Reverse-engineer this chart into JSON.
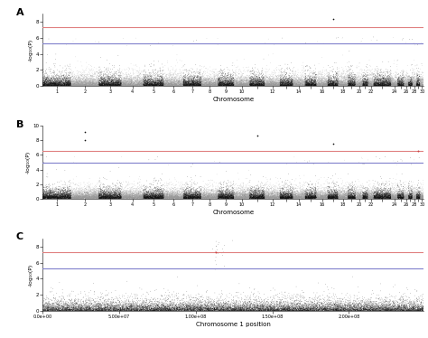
{
  "panel_labels": [
    "A",
    "B",
    "C"
  ],
  "n_chromosomes": 30,
  "chrom_colors": [
    "#111111",
    "#999999"
  ],
  "red_line_color": "#e08080",
  "blue_line_color": "#8080cc",
  "panel_A": {
    "ylim": [
      0,
      9
    ],
    "yticks": [
      0,
      2,
      4,
      6,
      8
    ],
    "ylabel": "-log₁₀(P)",
    "xlabel": "Chromosome",
    "red_line": 7.3,
    "blue_line": 5.3,
    "n_snps": 30000,
    "seed": 10
  },
  "panel_B": {
    "ylim": [
      0,
      10
    ],
    "yticks": [
      0,
      2,
      4,
      6,
      8,
      10
    ],
    "ylabel": "-log₁₀(P)",
    "xlabel": "Chromosome",
    "red_line": 6.5,
    "blue_line": 5.0,
    "n_snps": 30000,
    "seed": 20
  },
  "panel_C": {
    "ylim": [
      0,
      9
    ],
    "yticks": [
      0,
      2,
      4,
      6,
      8
    ],
    "ylabel": "-log₁₀(P)",
    "xlabel": "Chromosome 1 position",
    "red_line": 7.3,
    "blue_line": 5.3,
    "n_snps": 15000,
    "seed": 30
  },
  "fig_width": 4.74,
  "fig_height": 3.74
}
